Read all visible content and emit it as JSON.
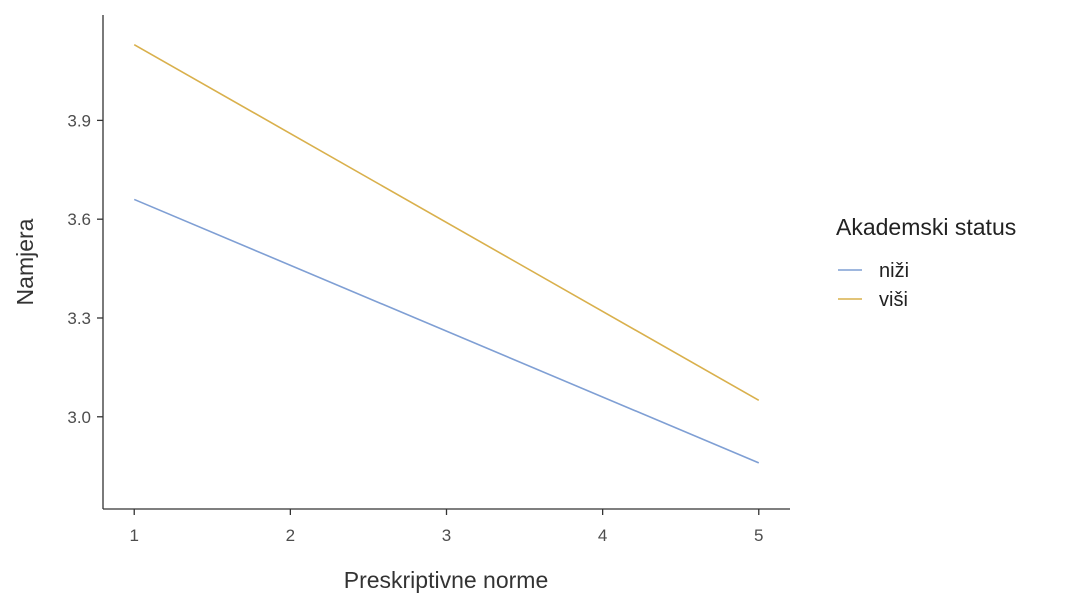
{
  "chart_data": {
    "type": "line",
    "title": "",
    "xlabel": "Preskriptivne norme",
    "ylabel": "Namjera",
    "x_ticks": [
      "1",
      "2",
      "3",
      "4",
      "5"
    ],
    "y_ticks": [
      "3.0",
      "3.3",
      "3.6",
      "3.9"
    ],
    "xlim": [
      0.8,
      5.2
    ],
    "ylim": [
      2.72,
      4.22
    ],
    "grid": false,
    "legend": {
      "title": "Akademski status",
      "position": "right"
    },
    "series": [
      {
        "name": "niži",
        "color": "#7f9fd4",
        "x": [
          1,
          5
        ],
        "y": [
          3.66,
          2.86
        ]
      },
      {
        "name": "viši",
        "color": "#d9b04c",
        "x": [
          1,
          5
        ],
        "y": [
          4.13,
          3.05
        ]
      }
    ]
  }
}
